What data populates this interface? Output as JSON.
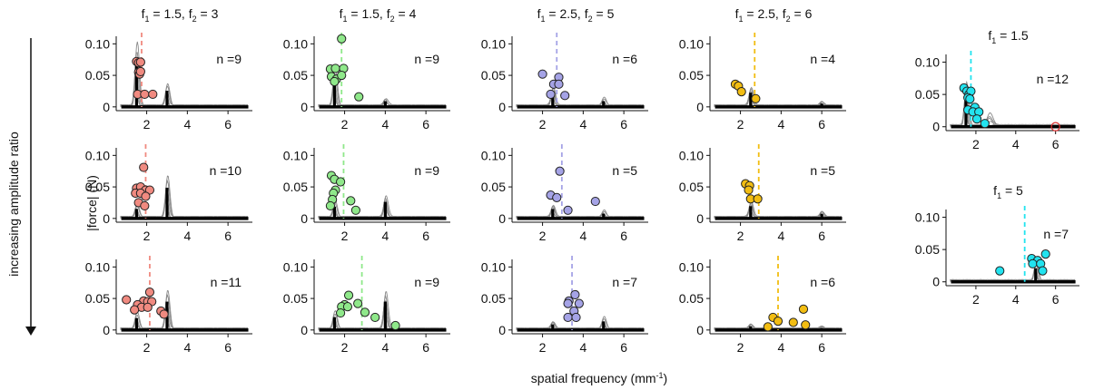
{
  "figure": {
    "y_label": "|force| (N)",
    "x_label_main": "spatial frequency (mm",
    "x_label_sup": "-1",
    "x_label_close": ")",
    "side_label": "increasing amplitude ratio"
  },
  "column_titles": [
    {
      "f1": "1.5",
      "f2": "3"
    },
    {
      "f1": "1.5",
      "f2": "4"
    },
    {
      "f1": "2.5",
      "f2": "5"
    },
    {
      "f1": "2.5",
      "f2": "6"
    }
  ],
  "single_titles": [
    "1.5",
    "5"
  ],
  "chart_data": {
    "type": "scatter",
    "description_axes": {
      "x_ticks": [
        2,
        4,
        6
      ],
      "y_ticks": [
        "0",
        "0.05",
        "0.10"
      ],
      "xlim": [
        0.5,
        7.2
      ],
      "ylim": [
        -0.006,
        0.112
      ]
    },
    "colors": {
      "red": "#f08a80",
      "green": "#8fe88a",
      "blue": "#a5a3e6",
      "yellow": "#f2bd12",
      "cyan": "#22e3ef"
    },
    "panels": [
      {
        "col": 0,
        "row": 0,
        "n": "n =9",
        "color": "red",
        "f1": 1.5,
        "f2": 3,
        "dash": 1.75,
        "sp": [
          [
            1.5,
            0.099
          ],
          [
            3.0,
            0.034
          ]
        ],
        "points": [
          [
            1.5,
            0.072
          ],
          [
            1.6,
            0.07
          ],
          [
            1.7,
            0.071
          ],
          [
            1.6,
            0.055
          ],
          [
            1.65,
            0.052
          ],
          [
            1.7,
            0.056
          ],
          [
            1.55,
            0.02
          ],
          [
            1.9,
            0.02
          ],
          [
            2.3,
            0.02
          ]
        ]
      },
      {
        "col": 1,
        "row": 0,
        "n": "n =9",
        "color": "green",
        "f1": 1.5,
        "f2": 4,
        "dash": 1.85,
        "sp": [
          [
            1.5,
            0.058
          ],
          [
            4.0,
            0.012
          ]
        ],
        "points": [
          [
            1.85,
            0.108
          ],
          [
            1.3,
            0.06
          ],
          [
            1.55,
            0.061
          ],
          [
            1.95,
            0.061
          ],
          [
            1.35,
            0.048
          ],
          [
            1.6,
            0.044
          ],
          [
            1.85,
            0.05
          ],
          [
            1.5,
            0.04
          ],
          [
            2.7,
            0.016
          ]
        ]
      },
      {
        "col": 2,
        "row": 0,
        "n": "n =6",
        "color": "blue",
        "f1": 2.5,
        "f2": 5,
        "dash": 2.7,
        "sp": [
          [
            2.5,
            0.031
          ],
          [
            5.0,
            0.012
          ]
        ],
        "points": [
          [
            2.0,
            0.052
          ],
          [
            2.8,
            0.047
          ],
          [
            2.55,
            0.036
          ],
          [
            2.8,
            0.036
          ],
          [
            2.4,
            0.02
          ],
          [
            3.1,
            0.018
          ]
        ]
      },
      {
        "col": 3,
        "row": 0,
        "n": "n =4",
        "color": "yellow",
        "f1": 2.5,
        "f2": 6,
        "dash": 2.7,
        "sp": [
          [
            2.5,
            0.03
          ],
          [
            6.0,
            0.007
          ]
        ],
        "points": [
          [
            1.75,
            0.036
          ],
          [
            1.9,
            0.033
          ],
          [
            2.05,
            0.024
          ],
          [
            2.75,
            0.013
          ]
        ]
      },
      {
        "col": 0,
        "row": 1,
        "n": "n =10",
        "color": "red",
        "f1": 1.5,
        "f2": 3,
        "dash": 1.95,
        "sp": [
          [
            1.5,
            0.02
          ],
          [
            3.0,
            0.065
          ]
        ],
        "points": [
          [
            1.85,
            0.081
          ],
          [
            1.5,
            0.048
          ],
          [
            1.7,
            0.05
          ],
          [
            1.95,
            0.045
          ],
          [
            2.15,
            0.045
          ],
          [
            1.45,
            0.04
          ],
          [
            1.7,
            0.04
          ],
          [
            1.95,
            0.035
          ],
          [
            1.6,
            0.025
          ],
          [
            1.9,
            0.02
          ]
        ]
      },
      {
        "col": 1,
        "row": 1,
        "n": "n =9",
        "color": "green",
        "f1": 1.5,
        "f2": 4,
        "dash": 1.95,
        "sp": [
          [
            1.5,
            0.025
          ],
          [
            4.0,
            0.035
          ]
        ],
        "points": [
          [
            1.35,
            0.068
          ],
          [
            1.5,
            0.062
          ],
          [
            1.8,
            0.058
          ],
          [
            1.55,
            0.045
          ],
          [
            1.45,
            0.04
          ],
          [
            1.4,
            0.03
          ],
          [
            1.3,
            0.02
          ],
          [
            2.3,
            0.028
          ],
          [
            2.55,
            0.013
          ]
        ]
      },
      {
        "col": 2,
        "row": 1,
        "n": "n =5",
        "color": "blue",
        "f1": 2.5,
        "f2": 5,
        "dash": 2.95,
        "sp": [
          [
            2.5,
            0.02
          ],
          [
            5.0,
            0.01
          ]
        ],
        "points": [
          [
            2.85,
            0.075
          ],
          [
            2.4,
            0.037
          ],
          [
            2.7,
            0.033
          ],
          [
            4.6,
            0.027
          ],
          [
            3.25,
            0.013
          ]
        ]
      },
      {
        "col": 3,
        "row": 1,
        "n": "n =5",
        "color": "yellow",
        "f1": 2.5,
        "f2": 6,
        "dash": 2.9,
        "sp": [
          [
            2.5,
            0.026
          ],
          [
            6.0,
            0.01
          ]
        ],
        "points": [
          [
            2.25,
            0.055
          ],
          [
            2.45,
            0.052
          ],
          [
            2.4,
            0.045
          ],
          [
            2.5,
            0.031
          ],
          [
            2.85,
            0.031
          ]
        ]
      },
      {
        "col": 0,
        "row": 2,
        "n": "n =11",
        "color": "red",
        "f1": 1.5,
        "f2": 3,
        "dash": 2.15,
        "sp": [
          [
            1.5,
            0.025
          ],
          [
            3.0,
            0.06
          ]
        ],
        "points": [
          [
            2.15,
            0.06
          ],
          [
            1.0,
            0.048
          ],
          [
            1.85,
            0.046
          ],
          [
            2.05,
            0.045
          ],
          [
            2.25,
            0.045
          ],
          [
            1.55,
            0.04
          ],
          [
            1.75,
            0.036
          ],
          [
            2.05,
            0.036
          ],
          [
            1.4,
            0.032
          ],
          [
            2.7,
            0.03
          ],
          [
            2.85,
            0.025
          ]
        ]
      },
      {
        "col": 1,
        "row": 2,
        "n": "n =9",
        "color": "green",
        "f1": 1.5,
        "f2": 4,
        "dash": 2.85,
        "sp": [
          [
            1.5,
            0.027
          ],
          [
            4.0,
            0.06
          ]
        ],
        "points": [
          [
            2.2,
            0.055
          ],
          [
            2.65,
            0.042
          ],
          [
            2.0,
            0.04
          ],
          [
            1.85,
            0.037
          ],
          [
            2.15,
            0.037
          ],
          [
            1.8,
            0.027
          ],
          [
            3.0,
            0.028
          ],
          [
            3.5,
            0.02
          ],
          [
            4.5,
            0.007
          ]
        ]
      },
      {
        "col": 2,
        "row": 2,
        "n": "n =7",
        "color": "blue",
        "f1": 2.5,
        "f2": 5,
        "dash": 3.45,
        "sp": [
          [
            2.5,
            0.012
          ],
          [
            5.0,
            0.018
          ]
        ],
        "points": [
          [
            3.6,
            0.056
          ],
          [
            3.3,
            0.046
          ],
          [
            3.25,
            0.042
          ],
          [
            3.8,
            0.042
          ],
          [
            3.55,
            0.03
          ],
          [
            3.25,
            0.02
          ],
          [
            3.65,
            0.02
          ]
        ]
      },
      {
        "col": 3,
        "row": 2,
        "n": "n =6",
        "color": "yellow",
        "f1": 2.5,
        "f2": 6,
        "dash": 3.85,
        "sp": [
          [
            2.5,
            0.008
          ],
          [
            6.0,
            0.004
          ]
        ],
        "points": [
          [
            5.1,
            0.033
          ],
          [
            3.6,
            0.02
          ],
          [
            3.85,
            0.014
          ],
          [
            4.6,
            0.012
          ],
          [
            5.2,
            0.008
          ],
          [
            3.35,
            0.005
          ]
        ]
      },
      {
        "col": 4,
        "row": 0,
        "n": "n =12",
        "color": "cyan",
        "f1": 1.5,
        "f2": null,
        "dash": 1.75,
        "sp": [
          [
            1.5,
            0.065
          ]
        ],
        "points": [
          [
            1.4,
            0.06
          ],
          [
            1.55,
            0.055
          ],
          [
            1.65,
            0.05
          ],
          [
            1.75,
            0.055
          ],
          [
            1.6,
            0.045
          ],
          [
            1.7,
            0.043
          ],
          [
            1.95,
            0.03
          ],
          [
            1.6,
            0.026
          ],
          [
            1.85,
            0.023
          ],
          [
            2.15,
            0.023
          ],
          [
            2.05,
            0.012
          ],
          [
            2.45,
            0.005
          ]
        ],
        "outlier": [
          6.0,
          0.0
        ]
      },
      {
        "col": 4,
        "row": 1,
        "n": "n =7",
        "color": "cyan",
        "f1": 5,
        "f2": null,
        "dash": 4.45,
        "sp": [
          [
            5.0,
            0.028
          ]
        ],
        "points": [
          [
            5.5,
            0.043
          ],
          [
            4.8,
            0.036
          ],
          [
            5.1,
            0.033
          ],
          [
            4.85,
            0.028
          ],
          [
            5.25,
            0.028
          ],
          [
            3.2,
            0.017
          ],
          [
            5.35,
            0.017
          ]
        ]
      }
    ]
  }
}
